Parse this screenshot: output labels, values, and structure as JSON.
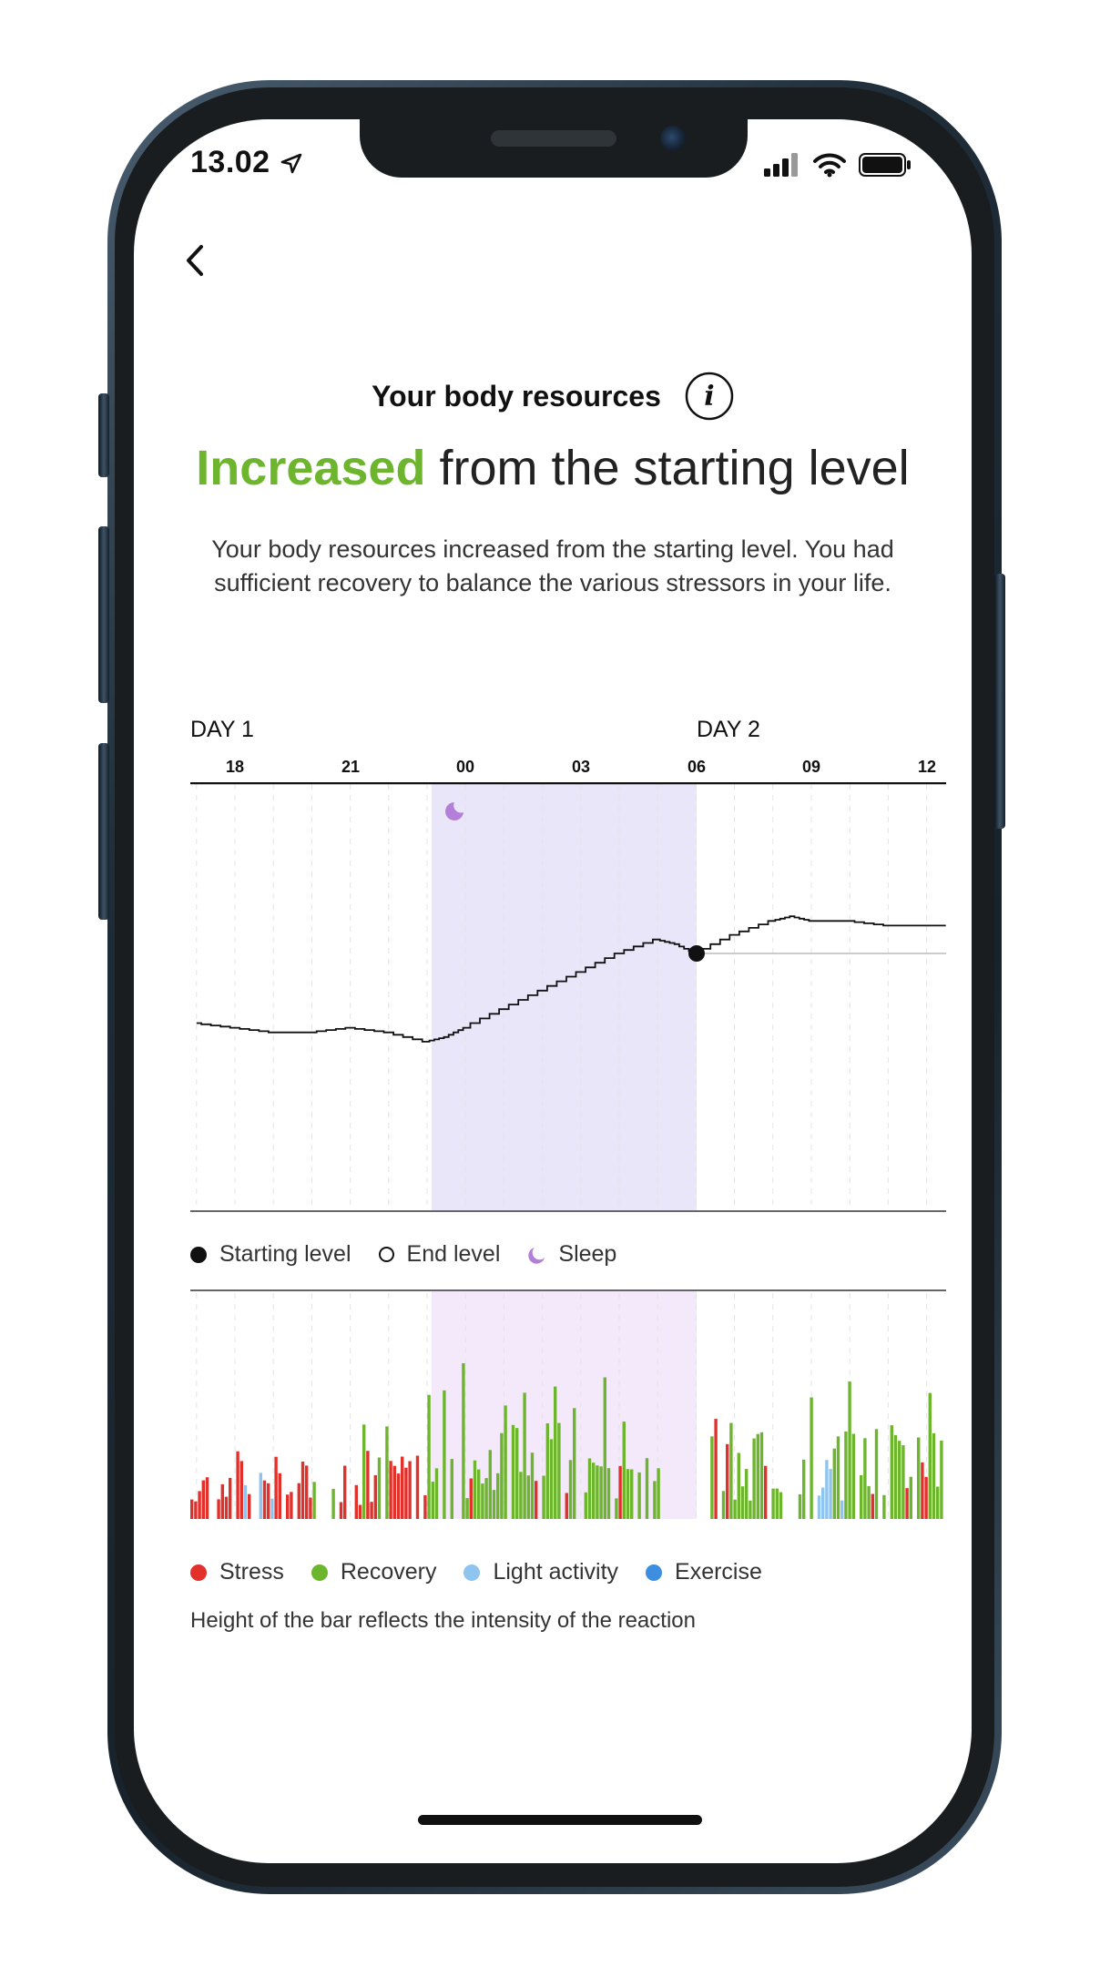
{
  "status_bar": {
    "time": "13.02"
  },
  "header": {
    "title": "Your body resources",
    "headline_accent": "Increased",
    "headline_rest": " from the starting level",
    "description": "Your body resources increased from the starting level. You had sufficient recovery to balance the various stressors in your life."
  },
  "chart": {
    "day1_label": "DAY 1",
    "day2_label": "DAY 2",
    "ticks": [
      "18",
      "21",
      "00",
      "03",
      "06",
      "09",
      "12"
    ]
  },
  "legend_top": {
    "start": "Starting level",
    "end": "End level",
    "sleep": "Sleep"
  },
  "legend_bottom": {
    "stress": "Stress",
    "recovery": "Recovery",
    "light": "Light activity",
    "exercise": "Exercise"
  },
  "note": "Height of the bar reflects the intensity of the reaction",
  "colors": {
    "accent": "#6cb52d",
    "stress": "#e2302b",
    "recovery": "#6cb52d",
    "light_activity": "#8fc4f0",
    "exercise": "#3d8ee0",
    "sleep_icon": "#b37fd8"
  },
  "chart_data": {
    "type": "line",
    "x_unit": "hour of day",
    "x_ticks": [
      "18",
      "21",
      "00",
      "03",
      "06",
      "09",
      "12"
    ],
    "sleep_period": {
      "start": "23:15",
      "end": "06:00"
    },
    "starting_level_at": "06:00",
    "body_resources_line": {
      "x_hours": [
        17,
        18,
        19,
        20,
        21,
        22,
        23,
        23.5,
        24,
        25,
        26,
        27,
        28,
        29,
        29.5,
        30,
        31,
        32,
        32.5,
        33,
        34,
        35,
        36,
        36.5
      ],
      "y_level": [
        48,
        47,
        46,
        46,
        47,
        46,
        44,
        45,
        47,
        51,
        55,
        59,
        63,
        66,
        65,
        63,
        67,
        70,
        71,
        70,
        70,
        69,
        69,
        69
      ]
    },
    "reaction_bars": {
      "categories": [
        "stress",
        "recovery",
        "light_activity",
        "exercise"
      ],
      "values_per_hour": {
        "17": "stress",
        "18": "stress/light_activity",
        "19": "stress",
        "20": "stress/recovery",
        "21": "stress/recovery",
        "22": "stress",
        "23": "recovery",
        "24": "recovery",
        "25": "recovery",
        "26": "recovery",
        "27": "recovery",
        "28": "recovery",
        "29": "recovery",
        "30": "stress/recovery",
        "31": "recovery",
        "32": "recovery",
        "33": "recovery/light_activity",
        "34": "recovery",
        "35": "stress/recovery",
        "36": "recovery"
      }
    }
  }
}
